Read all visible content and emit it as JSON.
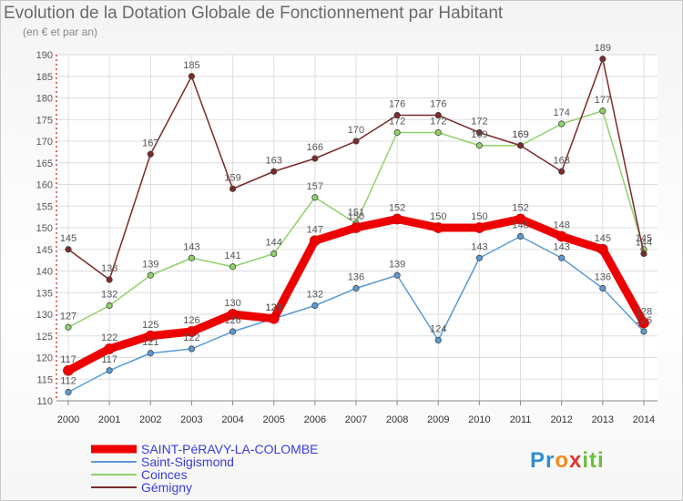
{
  "title": "Evolution de la Dotation Globale de Fonctionnement par Habitant",
  "subtitle": "(en € et par an)",
  "brand": [
    "Pr",
    "o",
    "x",
    "iti"
  ],
  "chart_data": {
    "type": "line",
    "x": [
      "2000",
      "2001",
      "2002",
      "2003",
      "2004",
      "2005",
      "2006",
      "2007",
      "2008",
      "2009",
      "2010",
      "2011",
      "2012",
      "2013",
      "2014"
    ],
    "ylim": [
      110,
      190
    ],
    "yticks": [
      110,
      115,
      120,
      125,
      130,
      135,
      140,
      145,
      150,
      155,
      160,
      165,
      170,
      175,
      180,
      185,
      190
    ],
    "grid": true,
    "legend_position": "bottom-left",
    "series": [
      {
        "name": "SAINT-PéRAVY-LA-COLOMBE",
        "color": "#ee0000",
        "emphasis": true,
        "values": [
          117,
          122,
          125,
          126,
          130,
          129,
          147,
          150,
          152,
          150,
          150,
          152,
          148,
          145,
          128
        ]
      },
      {
        "name": "Saint-Sigismond",
        "color": "#5a9bd5",
        "values": [
          112,
          117,
          121,
          122,
          126,
          129,
          132,
          136,
          139,
          124,
          143,
          148,
          143,
          136,
          126
        ]
      },
      {
        "name": "Coinces",
        "color": "#8fd16a",
        "values": [
          127,
          132,
          139,
          143,
          141,
          144,
          157,
          151,
          172,
          172,
          169,
          169,
          174,
          177,
          145
        ]
      },
      {
        "name": "Gémigny",
        "color": "#7b2a2a",
        "values": [
          145,
          138,
          167,
          185,
          159,
          163,
          166,
          170,
          176,
          176,
          172,
          169,
          163,
          189,
          144
        ]
      }
    ]
  }
}
